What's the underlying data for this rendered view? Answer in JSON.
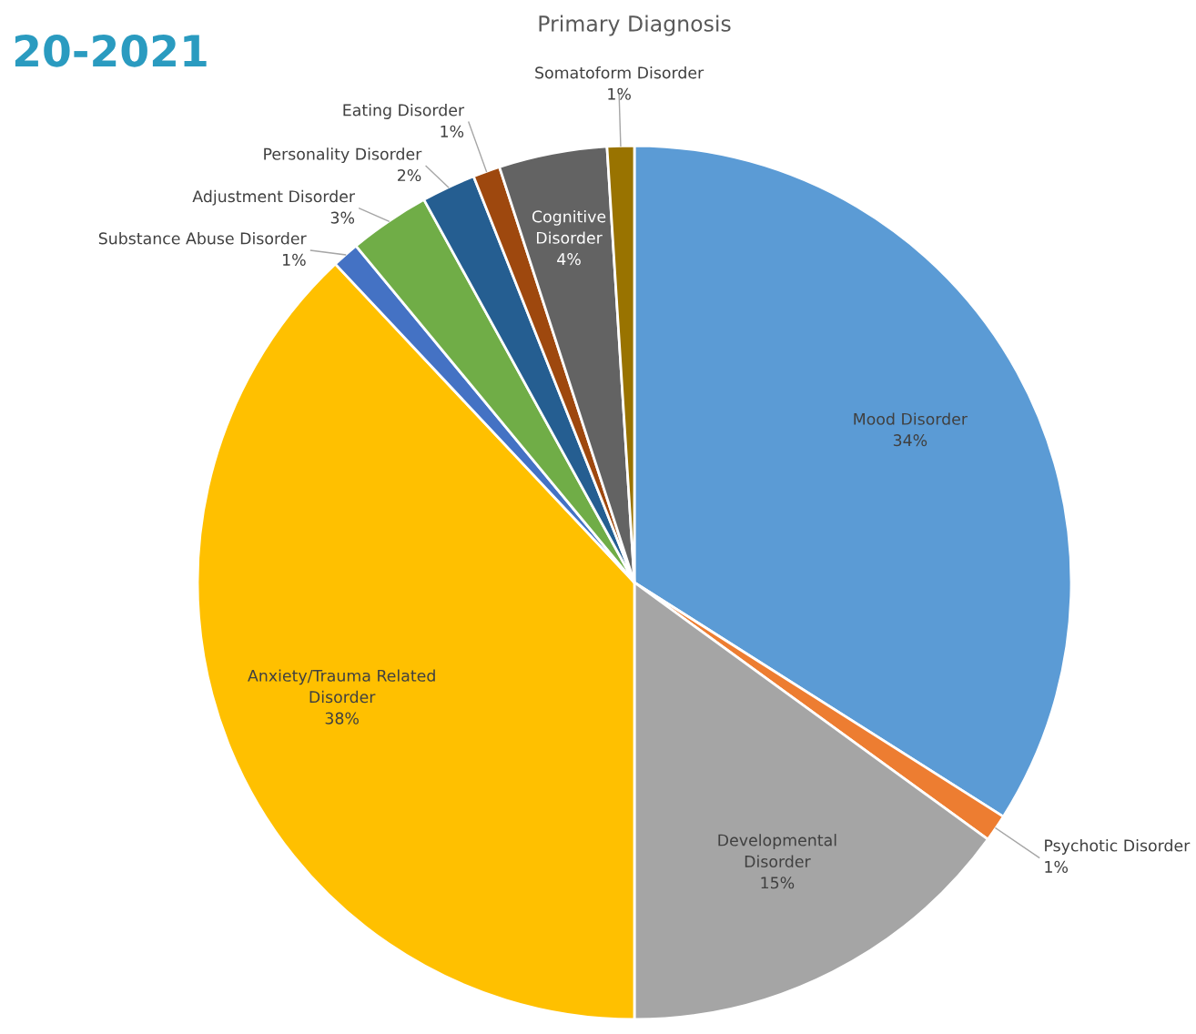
{
  "chart_data": {
    "type": "pie",
    "title": "Primary Diagnosis",
    "categories": [
      "Mood Disorder",
      "Psychotic Disorder",
      "Developmental Disorder",
      "Anxiety/Trauma Related Disorder",
      "Substance Abuse Disorder",
      "Adjustment Disorder",
      "Personality Disorder",
      "Eating Disorder",
      "Cognitive Disorder",
      "Somatoform Disorder"
    ],
    "values": [
      34,
      1,
      15,
      38,
      1,
      3,
      2,
      1,
      4,
      1
    ],
    "value_labels": [
      "34%",
      "1%",
      "15%",
      "38%",
      "1%",
      "3%",
      "2%",
      "1%",
      "4%",
      "1%"
    ],
    "colors": [
      "#5b9bd5",
      "#ed7d31",
      "#a5a5a5",
      "#ffc000",
      "#4472c4",
      "#70ad47",
      "#255e91",
      "#9e480e",
      "#636363",
      "#997300"
    ],
    "legend": false,
    "annotations": [
      "20-2021"
    ]
  }
}
